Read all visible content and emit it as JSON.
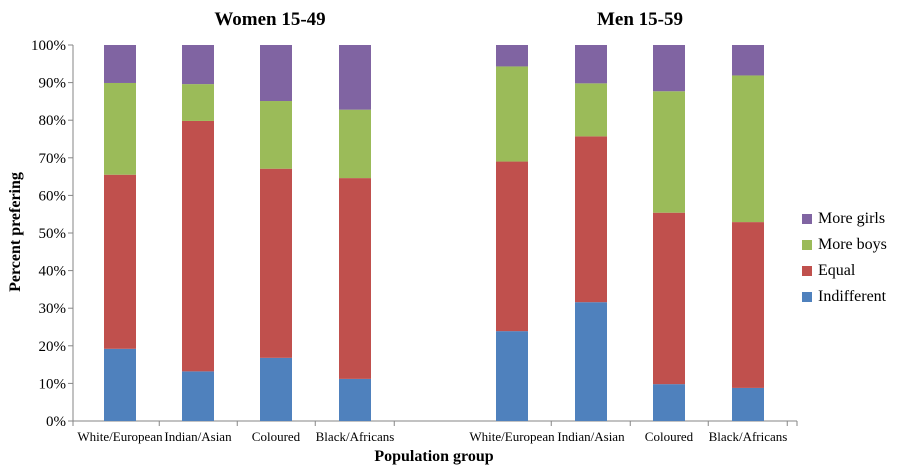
{
  "chart_data": {
    "type": "bar",
    "stacked": true,
    "y_axis_label": "Percent prefering",
    "x_axis_label": "Population group",
    "ylim": [
      0,
      100
    ],
    "y_tick_labels": [
      "0%",
      "10%",
      "20%",
      "30%",
      "40%",
      "50%",
      "60%",
      "70%",
      "80%",
      "90%",
      "100%"
    ],
    "gridlines": false,
    "legend_position": "right",
    "legend_order": [
      "More girls",
      "More boys",
      "Equal",
      "Indifferent"
    ],
    "series_colors": {
      "Indifferent": "#4f81bd",
      "Equal": "#c0504d",
      "More boys": "#9bbb59",
      "More girls": "#8064a2"
    },
    "panels": [
      {
        "title": "Women 15-49",
        "categories": [
          "White/European",
          "Indian/Asian",
          "Coloured",
          "Black/Africans"
        ],
        "series": [
          {
            "name": "Indifferent",
            "values": [
              19.2,
              13.2,
              16.8,
              11.2
            ]
          },
          {
            "name": "Equal",
            "values": [
              46.3,
              66.6,
              50.3,
              53.4
            ]
          },
          {
            "name": "More boys",
            "values": [
              24.4,
              9.8,
              18.0,
              18.2
            ]
          },
          {
            "name": "More girls",
            "values": [
              10.1,
              10.4,
              14.9,
              17.2
            ]
          }
        ]
      },
      {
        "title": "Men 15-59",
        "categories": [
          "White/European",
          "Indian/Asian",
          "Coloured",
          "Black/Africans"
        ],
        "series": [
          {
            "name": "Indifferent",
            "values": [
              23.9,
              31.6,
              9.8,
              8.8
            ]
          },
          {
            "name": "Equal",
            "values": [
              45.1,
              44.1,
              45.6,
              44.1
            ]
          },
          {
            "name": "More boys",
            "values": [
              25.3,
              14.1,
              32.3,
              39.0
            ]
          },
          {
            "name": "More girls",
            "values": [
              5.7,
              10.2,
              12.3,
              8.1
            ]
          }
        ]
      }
    ]
  }
}
